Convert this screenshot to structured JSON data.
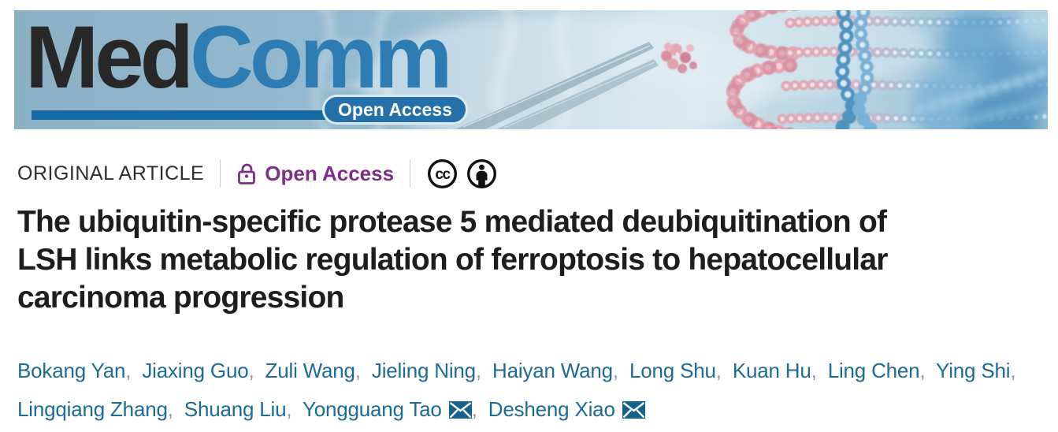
{
  "banner": {
    "logo_dark": "Med",
    "logo_accent": "Comm",
    "open_access_badge": "Open Access"
  },
  "meta": {
    "article_type": "ORIGINAL ARTICLE",
    "open_access_label": "Open Access",
    "license_icons": [
      "cc-icon",
      "cc-by-person-icon"
    ]
  },
  "title": {
    "full": "The ubiquitin-specific protease 5 mediated deubiquitination of LSH links metabolic regulation of ferroptosis to hepatocellular carcinoma progression",
    "lines": [
      "The ubiquitin-specific protease 5 mediated deubiquitination of",
      "LSH links metabolic regulation of ferroptosis to hepatocellular",
      "carcinoma progression"
    ]
  },
  "authors": {
    "lines": [
      [
        {
          "name": "Bokang Yan",
          "email": false
        },
        {
          "name": "Jiaxing Guo",
          "email": false
        },
        {
          "name": "Zuli Wang",
          "email": false
        },
        {
          "name": "Jieling Ning",
          "email": false
        },
        {
          "name": "Haiyan Wang",
          "email": false
        },
        {
          "name": "Long Shu",
          "email": false
        },
        {
          "name": "Kuan Hu",
          "email": false
        },
        {
          "name": "Ling Chen",
          "email": false
        },
        {
          "name": "Ying Shi",
          "email": false
        }
      ],
      [
        {
          "name": "Lingqiang Zhang",
          "email": false
        },
        {
          "name": "Shuang Liu",
          "email": false
        },
        {
          "name": "Yongguang Tao",
          "email": true
        },
        {
          "name": "Desheng Xiao",
          "email": true
        }
      ]
    ]
  },
  "colors": {
    "logo-dark": "#272727",
    "logo-accent": "#2e7cb4",
    "underline-bar": "#1668a2",
    "badge-fill": "#2470a8",
    "open-access-purple": "#7d2e87",
    "author-link-blue": "#1c6b96",
    "envelope-blue": "#15618d",
    "title-dark": "#1d1d1d"
  }
}
